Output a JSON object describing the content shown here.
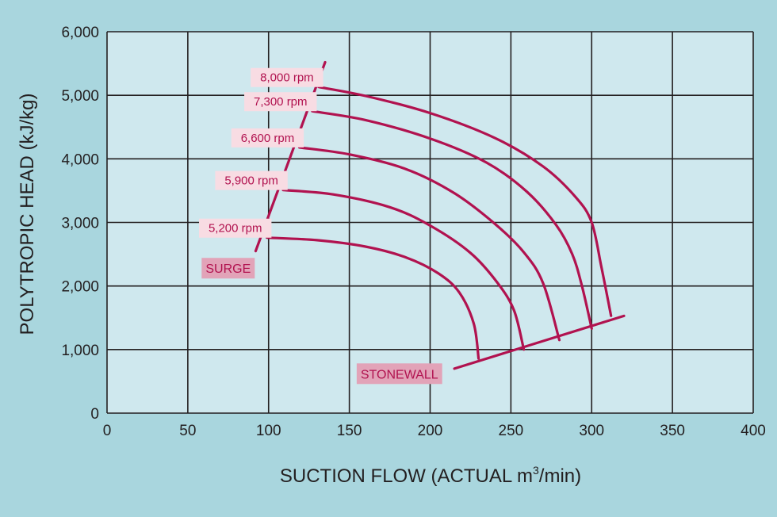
{
  "chart_data": {
    "type": "line",
    "xlabel_main": "SUCTION FLOW (ACTUAL m",
    "xlabel_sup": "3",
    "xlabel_end": "/min)",
    "ylabel": "POLYTROPIC HEAD (kJ/kg)",
    "xlim": [
      0,
      400
    ],
    "ylim": [
      0,
      6000
    ],
    "x_ticks": [
      0,
      50,
      100,
      150,
      200,
      250,
      300,
      350,
      400
    ],
    "x_tick_labels": [
      "0",
      "50",
      "100",
      "150",
      "200",
      "250",
      "300",
      "350",
      "400"
    ],
    "y_ticks": [
      0,
      1000,
      2000,
      3000,
      4000,
      5000,
      6000
    ],
    "y_tick_labels": [
      "0",
      "1,000",
      "2,000",
      "3,000",
      "4,000",
      "5,000",
      "6,000"
    ],
    "grid": true,
    "colors": {
      "background": "#a9d6de",
      "plot": "#cfe8ee",
      "curve": "#b1124f",
      "label_bg": "#f8dce3",
      "tag_bg": "#e2a3b8",
      "grid": "#231f20"
    },
    "series": [
      {
        "name": "8,000 rpm",
        "points": [
          [
            131,
            5130
          ],
          [
            160,
            4990
          ],
          [
            200,
            4720
          ],
          [
            240,
            4330
          ],
          [
            270,
            3880
          ],
          [
            290,
            3400
          ],
          [
            300,
            3000
          ],
          [
            306,
            2300
          ],
          [
            312,
            1530
          ]
        ]
      },
      {
        "name": "7,300 rpm",
        "points": [
          [
            127,
            4750
          ],
          [
            160,
            4610
          ],
          [
            200,
            4320
          ],
          [
            235,
            3940
          ],
          [
            260,
            3480
          ],
          [
            278,
            2960
          ],
          [
            288,
            2500
          ],
          [
            294,
            2000
          ],
          [
            300,
            1330
          ]
        ]
      },
      {
        "name": "6,600 rpm",
        "points": [
          [
            119,
            4180
          ],
          [
            150,
            4070
          ],
          [
            185,
            3840
          ],
          [
            215,
            3460
          ],
          [
            240,
            2980
          ],
          [
            258,
            2530
          ],
          [
            270,
            2040
          ],
          [
            280,
            1150
          ]
        ]
      },
      {
        "name": "5,900 rpm",
        "points": [
          [
            109,
            3510
          ],
          [
            140,
            3440
          ],
          [
            175,
            3240
          ],
          [
            200,
            2950
          ],
          [
            225,
            2520
          ],
          [
            242,
            2040
          ],
          [
            252,
            1610
          ],
          [
            258,
            1000
          ]
        ]
      },
      {
        "name": "5,200 rpm",
        "points": [
          [
            99,
            2760
          ],
          [
            130,
            2720
          ],
          [
            160,
            2620
          ],
          [
            185,
            2450
          ],
          [
            205,
            2200
          ],
          [
            218,
            1900
          ],
          [
            227,
            1410
          ],
          [
            230,
            860
          ]
        ]
      }
    ],
    "surge_line": {
      "name": "SURGE",
      "points": [
        [
          92,
          2550
        ],
        [
          135,
          5520
        ]
      ]
    },
    "stonewall_line": {
      "name": "STONEWALL",
      "points": [
        [
          215,
          700
        ],
        [
          320,
          1530
        ]
      ]
    }
  }
}
